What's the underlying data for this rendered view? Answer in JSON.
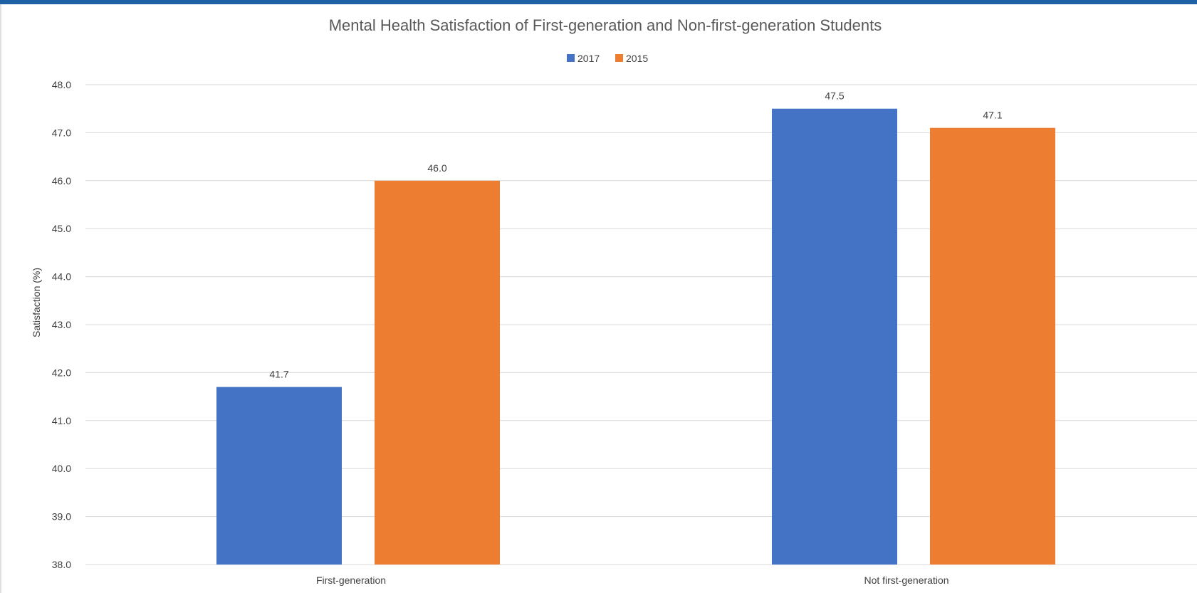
{
  "chart_data": {
    "type": "bar",
    "title": "Mental Health Satisfaction of First-generation and Non-first-generation Students",
    "xlabel": "",
    "ylabel": "Satisfaction (%)",
    "categories": [
      "First-generation",
      "Not first-generation"
    ],
    "series": [
      {
        "name": "2017",
        "values": [
          41.7,
          47.5
        ],
        "color": "#4472C4"
      },
      {
        "name": "2015",
        "values": [
          46.0,
          47.1
        ],
        "color": "#ED7D31"
      }
    ],
    "ylim": [
      38.0,
      48.0
    ],
    "yticks": [
      "38.0",
      "39.0",
      "40.0",
      "41.0",
      "42.0",
      "43.0",
      "44.0",
      "45.0",
      "46.0",
      "47.0",
      "48.0"
    ],
    "data_labels": [
      [
        "41.7",
        "47.5"
      ],
      [
        "46.0",
        "47.1"
      ]
    ],
    "legend_position": "top",
    "grid": true,
    "colors": {
      "frame_accent": "#1F5FA8",
      "gridline": "#D9D9D9",
      "text": "#404040"
    }
  }
}
